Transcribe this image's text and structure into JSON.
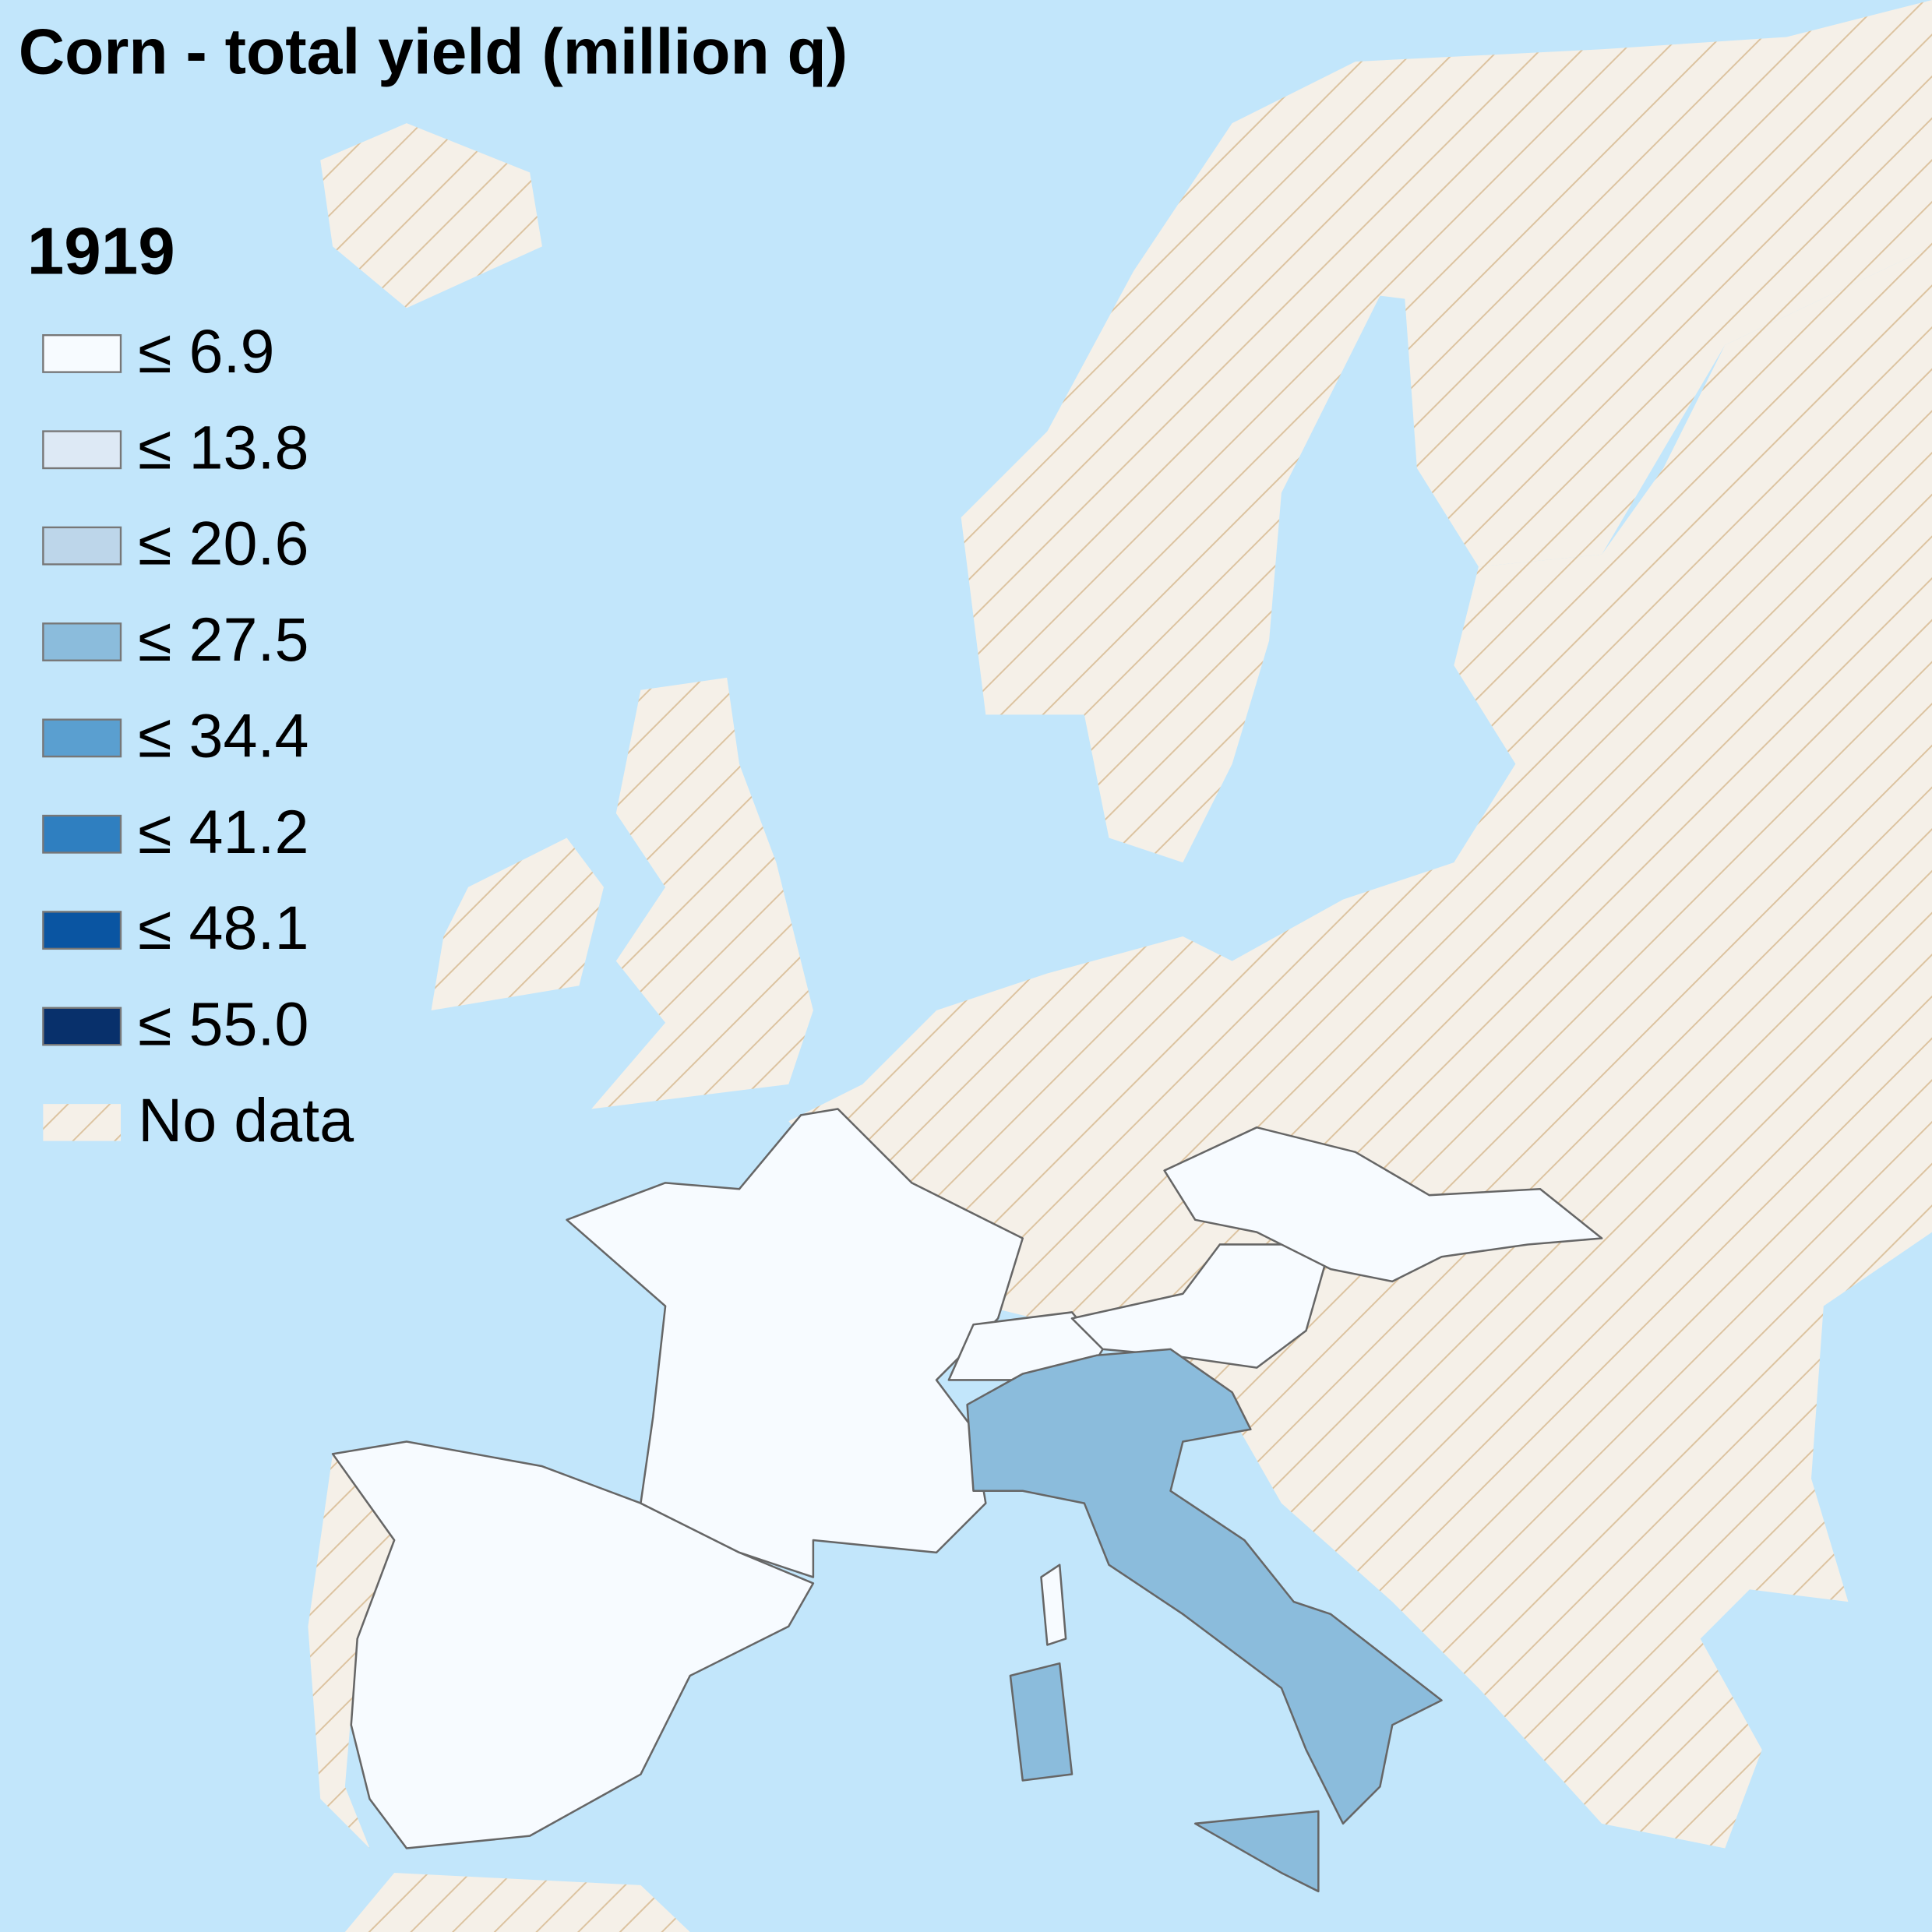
{
  "title": "Corn - total yield (million q)",
  "legend": {
    "year": "1919",
    "items": [
      {
        "label": "≤ 6.9",
        "value": 6.9,
        "color": "#f7fbff"
      },
      {
        "label": "≤ 13.8",
        "value": 13.8,
        "color": "#dde9f5"
      },
      {
        "label": "≤ 20.6",
        "value": 20.6,
        "color": "#bdd6ea"
      },
      {
        "label": "≤ 27.5",
        "value": 27.5,
        "color": "#8bbcdc"
      },
      {
        "label": "≤ 34.4",
        "value": 34.4,
        "color": "#5a9fd0"
      },
      {
        "label": "≤ 41.2",
        "value": 41.2,
        "color": "#2f7fc0"
      },
      {
        "label": "≤ 48.1",
        "value": 48.1,
        "color": "#0a55a2"
      },
      {
        "label": "≤ 55.0",
        "value": 55.0,
        "color": "#08306b"
      }
    ],
    "no_data_label": "No data"
  }
}
